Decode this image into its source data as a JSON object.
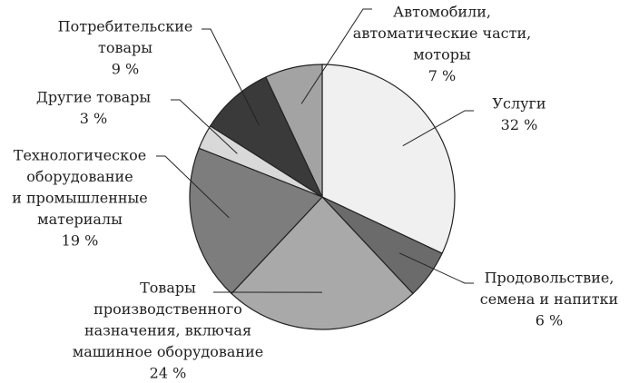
{
  "chart_data": {
    "type": "pie",
    "categories": [
      [
        "Услуги"
      ],
      [
        "Продовольствие,",
        "семена и напитки"
      ],
      [
        "Товары",
        "производственного",
        "назначения, включая",
        "машинное оборудование"
      ],
      [
        "Технологическое",
        "оборудование",
        "и промышленные",
        "материалы"
      ],
      [
        "Другие товары"
      ],
      [
        "Потребительские",
        "товары"
      ],
      [
        "Автомобили,",
        "автоматические части,",
        "моторы"
      ]
    ],
    "values": [
      32,
      6,
      24,
      19,
      3,
      9,
      7
    ],
    "value_labels": [
      "32 %",
      "6 %",
      "24 %",
      "19 %",
      "3 %",
      "9 %",
      "7 %"
    ],
    "colors": [
      "#f0f0f0",
      "#6b6b6b",
      "#a9a9a9",
      "#7d7d7d",
      "#d9d9d9",
      "#3a3a3a",
      "#a3a3a3"
    ]
  }
}
